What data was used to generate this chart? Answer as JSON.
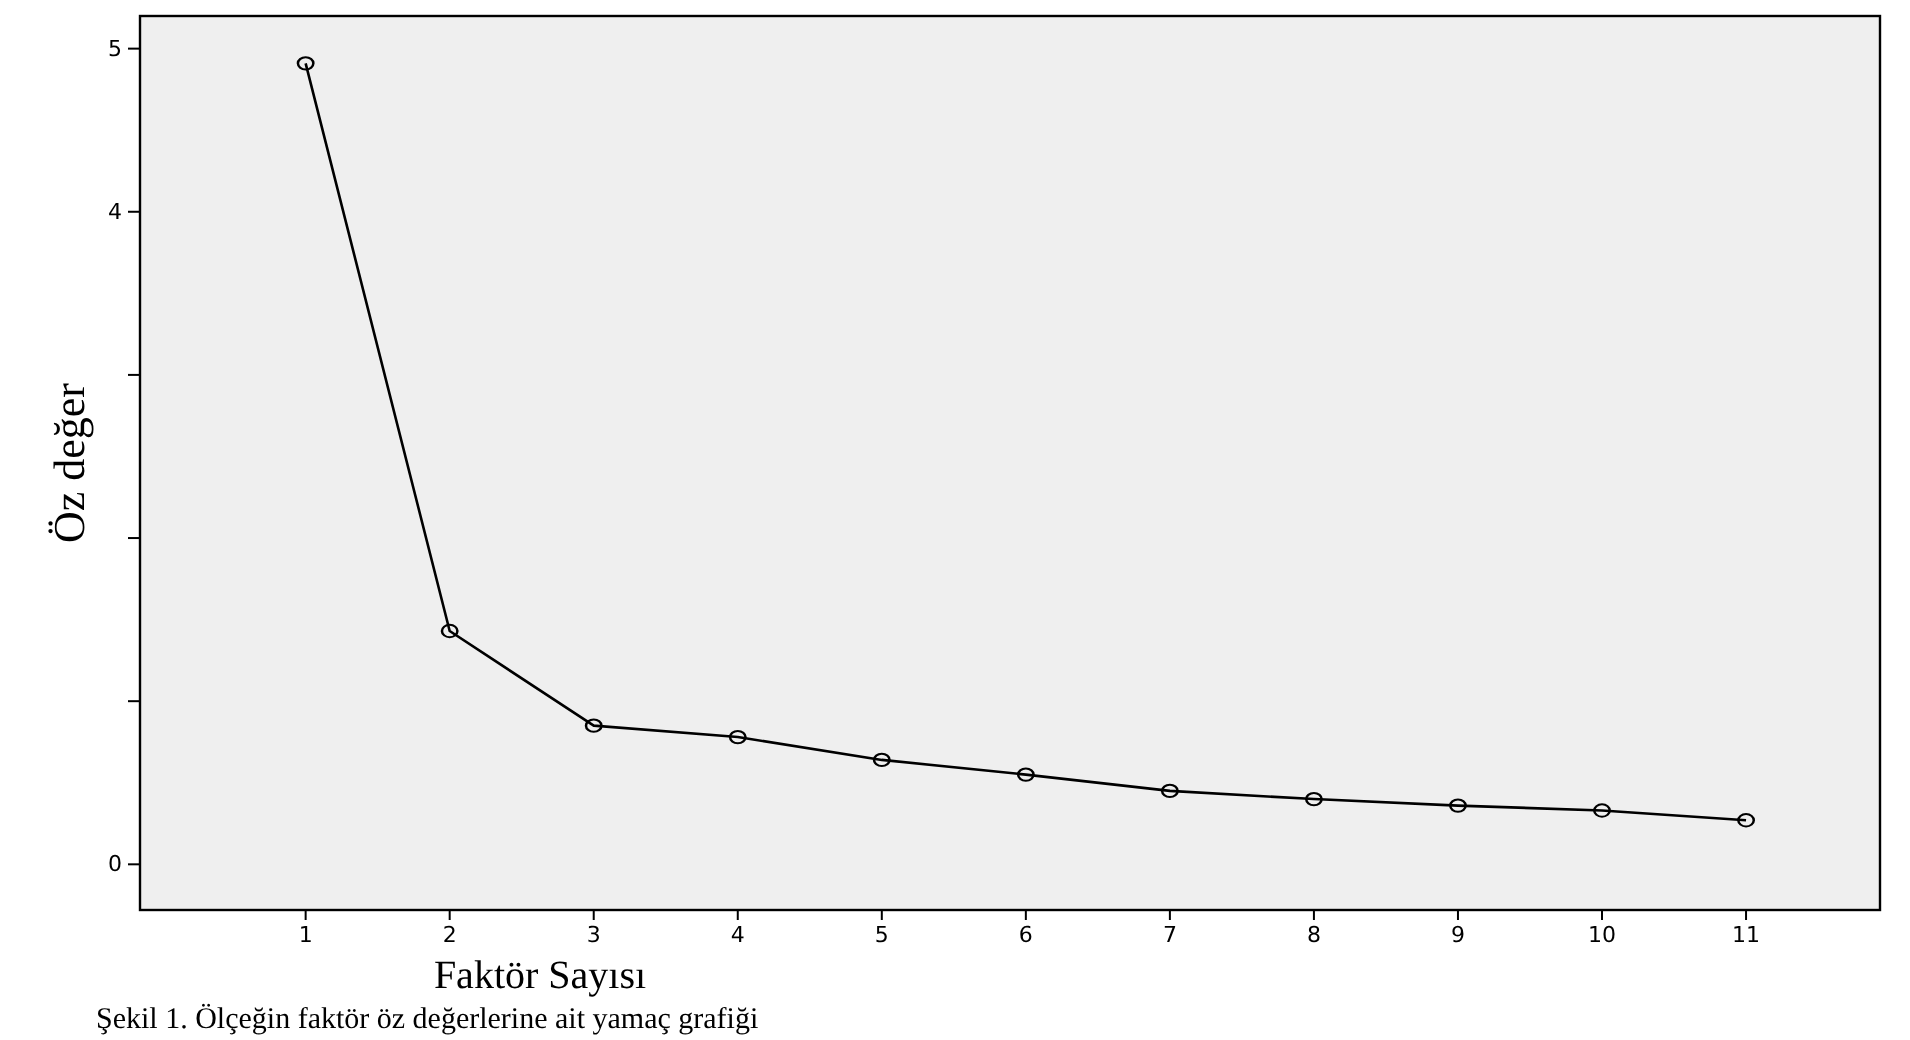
{
  "chart_data": {
    "type": "line",
    "xlabel": "Faktör Sayısı",
    "ylabel": "Öz değer",
    "annotations": [
      "Şekil 1. Ölçeğin faktör öz değerlerine ait yamaç grafiği"
    ],
    "x": [
      1,
      2,
      3,
      4,
      5,
      6,
      7,
      8,
      9,
      10,
      11
    ],
    "values": [
      4.91,
      1.43,
      0.85,
      0.78,
      0.64,
      0.55,
      0.45,
      0.4,
      0.36,
      0.33,
      0.27
    ],
    "color": "#000000",
    "marker": "circle",
    "line_style": "solid",
    "grid": false,
    "xlim": [
      -0.15,
      11.93
    ],
    "xticks": [
      1,
      2,
      3,
      4,
      5,
      6,
      7,
      8,
      9,
      10,
      11
    ],
    "ylim": [
      -0.28,
      5.2
    ],
    "yticks": [
      0,
      {
        "value": 1,
        "label": null
      },
      {
        "value": 2,
        "label": null
      },
      {
        "value": 3,
        "label": null
      },
      4,
      5
    ]
  }
}
